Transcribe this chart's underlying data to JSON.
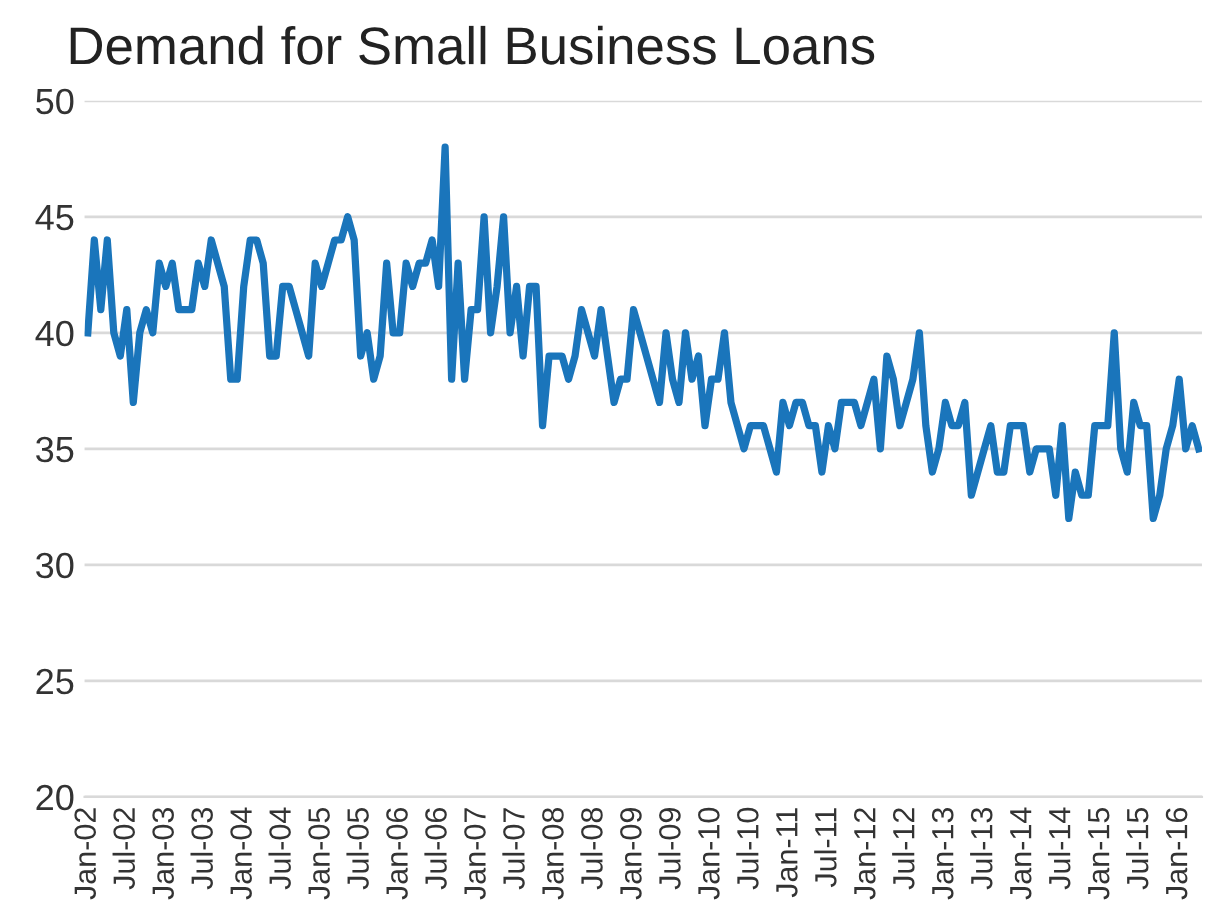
{
  "chart_data": {
    "type": "line",
    "title": "Demand for Small Business Loans",
    "categories": [
      "Jan-02",
      null,
      null,
      null,
      null,
      null,
      "Jul-02",
      null,
      null,
      null,
      null,
      null,
      "Jan-03",
      null,
      null,
      null,
      null,
      null,
      "Jul-03",
      null,
      null,
      null,
      null,
      null,
      "Jan-04",
      null,
      null,
      null,
      null,
      null,
      "Jul-04",
      null,
      null,
      null,
      null,
      null,
      "Jan-05",
      null,
      null,
      null,
      null,
      null,
      "Jul-05",
      null,
      null,
      null,
      null,
      null,
      "Jan-06",
      null,
      null,
      null,
      null,
      null,
      "Jul-06",
      null,
      null,
      null,
      null,
      null,
      "Jan-07",
      null,
      null,
      null,
      null,
      null,
      "Jul-07",
      null,
      null,
      null,
      null,
      null,
      "Jan-08",
      null,
      null,
      null,
      null,
      null,
      "Jul-08",
      null,
      null,
      null,
      null,
      null,
      "Jan-09",
      null,
      null,
      null,
      null,
      null,
      "Jul-09",
      null,
      null,
      null,
      null,
      null,
      "Jan-10",
      null,
      null,
      null,
      null,
      null,
      "Jul-10",
      null,
      null,
      null,
      null,
      null,
      "Jan-11",
      null,
      null,
      null,
      null,
      null,
      "Jul-11",
      null,
      null,
      null,
      null,
      null,
      "Jan-12",
      null,
      null,
      null,
      null,
      null,
      "Jul-12",
      null,
      null,
      null,
      null,
      null,
      "Jan-13",
      null,
      null,
      null,
      null,
      null,
      "Jul-13",
      null,
      null,
      null,
      null,
      null,
      "Jan-14",
      null,
      null,
      null,
      null,
      null,
      "Jul-14",
      null,
      null,
      null,
      null,
      null,
      "Jan-15",
      null,
      null,
      null,
      null,
      null,
      "Jul-15",
      null,
      null,
      null,
      null,
      null,
      "Jan-16",
      null,
      null,
      null
    ],
    "series": [
      {
        "color": "#1a75bb",
        "values": [
          40,
          44,
          41,
          44,
          40,
          39,
          41,
          37,
          40,
          41,
          40,
          43,
          42,
          43,
          41,
          41,
          41,
          43,
          42,
          44,
          43,
          42,
          38,
          38,
          42,
          44,
          44,
          43,
          39,
          39,
          42,
          42,
          41,
          40,
          39,
          43,
          42,
          43,
          44,
          44,
          45,
          44,
          39,
          40,
          38,
          39,
          43,
          40,
          40,
          43,
          42,
          43,
          43,
          44,
          42,
          48,
          38,
          43,
          38,
          41,
          41,
          45,
          40,
          42,
          45,
          40,
          42,
          39,
          42,
          42,
          36,
          39,
          39,
          39,
          38,
          39,
          41,
          40,
          39,
          41,
          39,
          37,
          38,
          38,
          41,
          40,
          39,
          38,
          37,
          40,
          38,
          37,
          40,
          38,
          39,
          36,
          38,
          38,
          40,
          37,
          36,
          35,
          36,
          36,
          36,
          35,
          34,
          37,
          36,
          37,
          37,
          36,
          36,
          34,
          36,
          35,
          37,
          37,
          37,
          36,
          37,
          38,
          35,
          39,
          38,
          36,
          37,
          38,
          40,
          36,
          34,
          35,
          37,
          36,
          36,
          37,
          33,
          34,
          35,
          36,
          34,
          34,
          36,
          36,
          36,
          34,
          35,
          35,
          35,
          33,
          36,
          32,
          34,
          33,
          33,
          36,
          36,
          36,
          40,
          35,
          34,
          37,
          36,
          36,
          32,
          33,
          35,
          36,
          38,
          35,
          36,
          35
        ]
      }
    ],
    "ylim": [
      20,
      50
    ],
    "yticks": [
      20,
      25,
      30,
      35,
      40,
      45,
      50
    ],
    "grid": "y",
    "line_style": "solid",
    "marker": "none"
  }
}
